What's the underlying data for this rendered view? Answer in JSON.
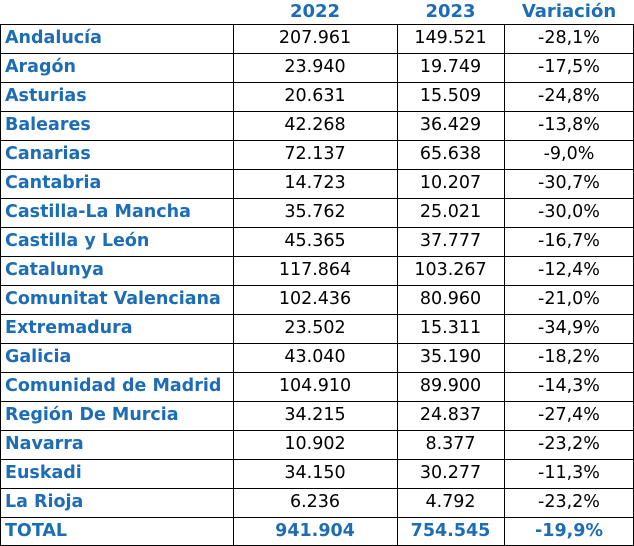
{
  "header": {
    "region": "",
    "y2022": "2022",
    "y2023": "2023",
    "variation": "Variación"
  },
  "rows": [
    {
      "region": "Andalucía",
      "y2022": "207.961",
      "y2023": "149.521",
      "variation": "-28,1%"
    },
    {
      "region": "Aragón",
      "y2022": "23.940",
      "y2023": "19.749",
      "variation": "-17,5%"
    },
    {
      "region": "Asturias",
      "y2022": "20.631",
      "y2023": "15.509",
      "variation": "-24,8%"
    },
    {
      "region": "Baleares",
      "y2022": "42.268",
      "y2023": "36.429",
      "variation": "-13,8%"
    },
    {
      "region": "Canarias",
      "y2022": "72.137",
      "y2023": "65.638",
      "variation": "-9,0%"
    },
    {
      "region": "Cantabria",
      "y2022": "14.723",
      "y2023": "10.207",
      "variation": "-30,7%"
    },
    {
      "region": "Castilla-La Mancha",
      "y2022": "35.762",
      "y2023": "25.021",
      "variation": "-30,0%"
    },
    {
      "region": "Castilla y León",
      "y2022": "45.365",
      "y2023": "37.777",
      "variation": "-16,7%"
    },
    {
      "region": "Catalunya",
      "y2022": "117.864",
      "y2023": "103.267",
      "variation": "-12,4%"
    },
    {
      "region": "Comunitat Valenciana",
      "y2022": "102.436",
      "y2023": "80.960",
      "variation": "-21,0%"
    },
    {
      "region": "Extremadura",
      "y2022": "23.502",
      "y2023": "15.311",
      "variation": "-34,9%"
    },
    {
      "region": "Galicia",
      "y2022": "43.040",
      "y2023": "35.190",
      "variation": "-18,2%"
    },
    {
      "region": "Comunidad de Madrid",
      "y2022": "104.910",
      "y2023": "89.900",
      "variation": "-14,3%"
    },
    {
      "region": "Región De Murcia",
      "y2022": "34.215",
      "y2023": "24.837",
      "variation": "-27,4%"
    },
    {
      "region": "Navarra",
      "y2022": "10.902",
      "y2023": "8.377",
      "variation": "-23,2%"
    },
    {
      "region": "Euskadi",
      "y2022": "34.150",
      "y2023": "30.277",
      "variation": "-11,3%"
    },
    {
      "region": "La Rioja",
      "y2022": "6.236",
      "y2023": "4.792",
      "variation": "-23,2%"
    }
  ],
  "total": {
    "region": "TOTAL",
    "y2022": "941.904",
    "y2023": "754.545",
    "variation": "-19,9%"
  },
  "colors": {
    "label_blue": "#1c6db5",
    "grid_line": "#000000",
    "value_text": "#000000"
  }
}
